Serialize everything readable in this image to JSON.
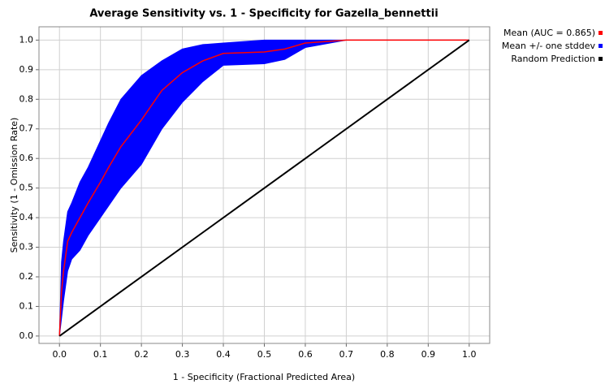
{
  "chart_data": {
    "type": "line",
    "title": "Average Sensitivity vs. 1 - Specificity for Gazella_bennettii",
    "x_label": "1 - Specificity (Fractional Predicted Area)",
    "y_label": "Sensitivity (1 - Omission Rate)",
    "x": [
      0,
      0.005,
      0.01,
      0.02,
      0.03,
      0.05,
      0.07,
      0.1,
      0.12,
      0.15,
      0.2,
      0.25,
      0.3,
      0.35,
      0.4,
      0.5,
      0.55,
      0.6,
      0.7,
      1.0
    ],
    "series": [
      {
        "name": "Mean (AUC = 0.865)",
        "color": "#ff0000",
        "values": [
          0,
          0.15,
          0.22,
          0.32,
          0.35,
          0.4,
          0.45,
          0.52,
          0.57,
          0.64,
          0.73,
          0.83,
          0.89,
          0.93,
          0.955,
          0.96,
          0.97,
          0.99,
          1.0,
          1.0
        ]
      },
      {
        "name": "Mean +/- one stddev",
        "color": "#0000ff",
        "values": [
          0,
          0.25,
          0.32,
          0.42,
          0.45,
          0.52,
          0.57,
          0.66,
          0.72,
          0.8,
          0.88,
          0.93,
          0.97,
          0.985,
          0.99,
          1.0,
          1.0,
          1.0,
          1.0,
          1.0
        ],
        "lower": [
          0,
          0.06,
          0.12,
          0.22,
          0.26,
          0.29,
          0.34,
          0.4,
          0.44,
          0.5,
          0.58,
          0.7,
          0.79,
          0.86,
          0.915,
          0.92,
          0.935,
          0.975,
          1.0,
          1.0
        ]
      },
      {
        "name": "Random Prediction",
        "color": "#000000",
        "x": [
          0,
          1
        ],
        "values": [
          0,
          1
        ]
      }
    ],
    "xlim": [
      -0.05,
      1.05
    ],
    "ylim": [
      -0.025,
      1.045
    ],
    "xticks": [
      {
        "value": 0,
        "label": "0.0"
      },
      0.1,
      0.2,
      0.3,
      0.4,
      0.5,
      0.6,
      0.7,
      0.8,
      0.9,
      {
        "value": 1,
        "label": "1.0"
      }
    ],
    "yticks": [
      {
        "value": 0,
        "label": "0.0"
      },
      0.1,
      0.2,
      0.3,
      0.4,
      0.5,
      0.6,
      0.7,
      0.8,
      0.9,
      {
        "value": 1,
        "label": "1.0"
      }
    ],
    "grid": true
  }
}
